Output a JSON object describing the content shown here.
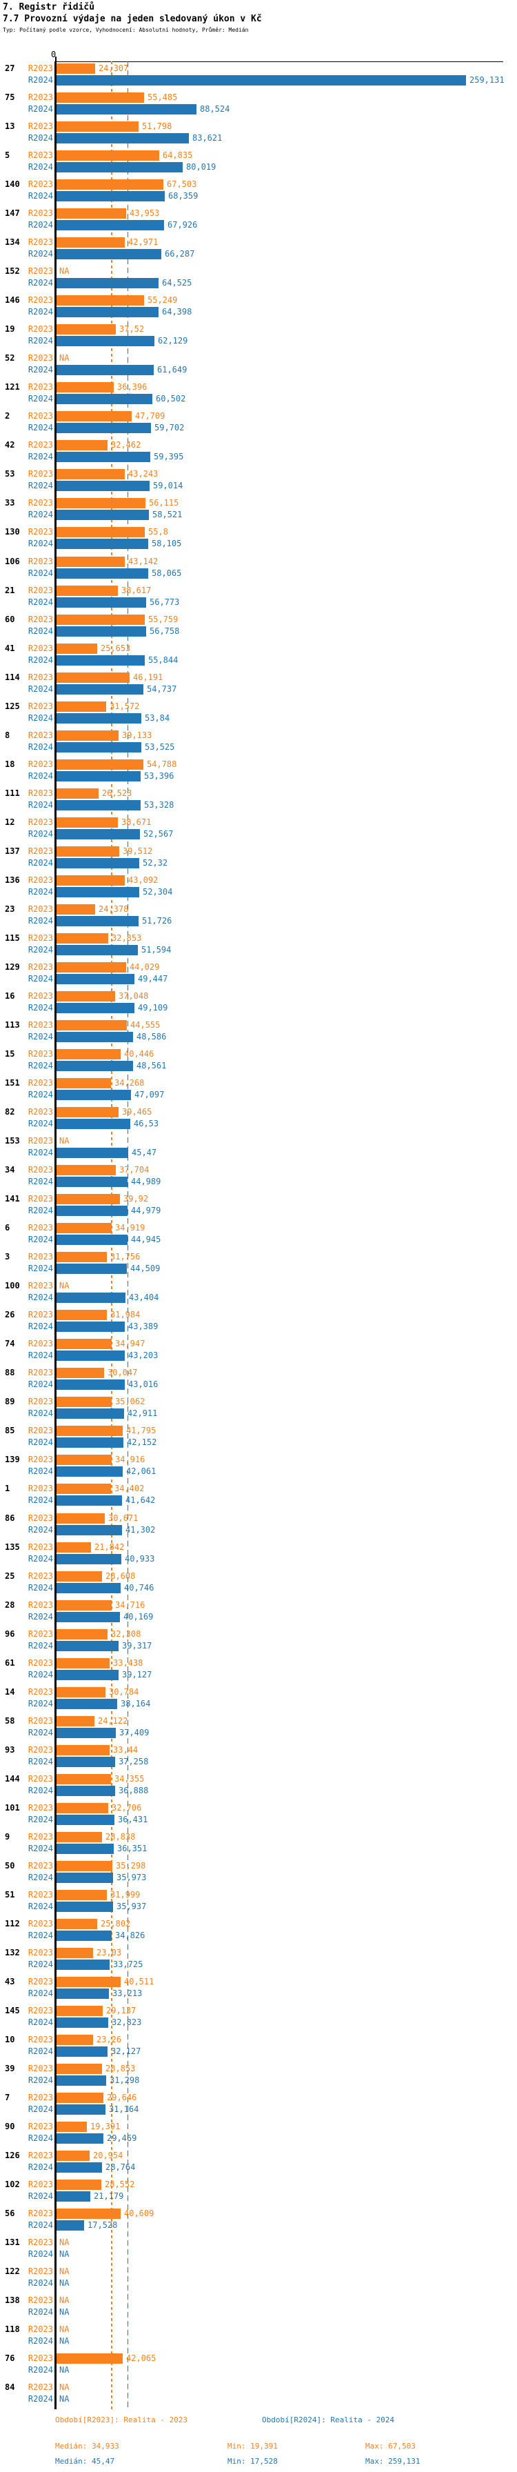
{
  "header": {
    "title": "7. Registr řidičů",
    "subtitle": "7.7 Provozní výdaje na jeden sledovaný úkon v Kč",
    "meta": "Typ: Počítaný podle vzorce, Vyhodnocení: Absolutní hodnoty, Průměr: Medián"
  },
  "chart_data": {
    "type": "bar",
    "orientation": "horizontal",
    "value_format": "czech decimal comma, thousands of Kč",
    "axis": {
      "zero_label": "0"
    },
    "series_names": [
      "R2023",
      "R2024"
    ],
    "colors": {
      "r2023": "#f8821f",
      "r2024": "#2277b4"
    },
    "medians": {
      "r2023": 34.933,
      "r2024": 45.47
    },
    "rows": [
      {
        "id": "27",
        "r2023": "24,307",
        "r2024": "259,131"
      },
      {
        "id": "75",
        "r2023": "55,485",
        "r2024": "88,524"
      },
      {
        "id": "13",
        "r2023": "51,798",
        "r2024": "83,621"
      },
      {
        "id": "5",
        "r2023": "64,835",
        "r2024": "80,019"
      },
      {
        "id": "140",
        "r2023": "67,503",
        "r2024": "68,359"
      },
      {
        "id": "147",
        "r2023": "43,953",
        "r2024": "67,926"
      },
      {
        "id": "134",
        "r2023": "42,971",
        "r2024": "66,287"
      },
      {
        "id": "152",
        "r2023": "NA",
        "r2024": "64,525"
      },
      {
        "id": "146",
        "r2023": "55,249",
        "r2024": "64,398"
      },
      {
        "id": "19",
        "r2023": "37,52",
        "r2024": "62,129"
      },
      {
        "id": "52",
        "r2023": "NA",
        "r2024": "61,649"
      },
      {
        "id": "121",
        "r2023": "36,396",
        "r2024": "60,502"
      },
      {
        "id": "2",
        "r2023": "47,709",
        "r2024": "59,702"
      },
      {
        "id": "42",
        "r2023": "32,462",
        "r2024": "59,395"
      },
      {
        "id": "53",
        "r2023": "43,243",
        "r2024": "59,014"
      },
      {
        "id": "33",
        "r2023": "56,115",
        "r2024": "58,521"
      },
      {
        "id": "130",
        "r2023": "55,8",
        "r2024": "58,105"
      },
      {
        "id": "106",
        "r2023": "43,142",
        "r2024": "58,065"
      },
      {
        "id": "21",
        "r2023": "38,617",
        "r2024": "56,773"
      },
      {
        "id": "60",
        "r2023": "55,759",
        "r2024": "56,758"
      },
      {
        "id": "41",
        "r2023": "25,653",
        "r2024": "55,844"
      },
      {
        "id": "114",
        "r2023": "46,191",
        "r2024": "54,737"
      },
      {
        "id": "125",
        "r2023": "31,572",
        "r2024": "53,84"
      },
      {
        "id": "8",
        "r2023": "39,133",
        "r2024": "53,525"
      },
      {
        "id": "18",
        "r2023": "54,788",
        "r2024": "53,396"
      },
      {
        "id": "111",
        "r2023": "26,523",
        "r2024": "53,328"
      },
      {
        "id": "12",
        "r2023": "38,671",
        "r2024": "52,567"
      },
      {
        "id": "137",
        "r2023": "39,512",
        "r2024": "52,32"
      },
      {
        "id": "136",
        "r2023": "43,092",
        "r2024": "52,304"
      },
      {
        "id": "23",
        "r2023": "24,378",
        "r2024": "51,726"
      },
      {
        "id": "115",
        "r2023": "32,853",
        "r2024": "51,594"
      },
      {
        "id": "129",
        "r2023": "44,029",
        "r2024": "49,447"
      },
      {
        "id": "16",
        "r2023": "37,048",
        "r2024": "49,109"
      },
      {
        "id": "113",
        "r2023": "44,555",
        "r2024": "48,586"
      },
      {
        "id": "15",
        "r2023": "40,446",
        "r2024": "48,561"
      },
      {
        "id": "151",
        "r2023": "34,268",
        "r2024": "47,097"
      },
      {
        "id": "82",
        "r2023": "39,465",
        "r2024": "46,53"
      },
      {
        "id": "153",
        "r2023": "NA",
        "r2024": "45,47"
      },
      {
        "id": "34",
        "r2023": "37,704",
        "r2024": "44,989"
      },
      {
        "id": "141",
        "r2023": "39,92",
        "r2024": "44,979"
      },
      {
        "id": "6",
        "r2023": "34,919",
        "r2024": "44,945"
      },
      {
        "id": "3",
        "r2023": "31,756",
        "r2024": "44,509"
      },
      {
        "id": "100",
        "r2023": "NA",
        "r2024": "43,404"
      },
      {
        "id": "26",
        "r2023": "31,984",
        "r2024": "43,389"
      },
      {
        "id": "74",
        "r2023": "34,947",
        "r2024": "43,203"
      },
      {
        "id": "88",
        "r2023": "30,047",
        "r2024": "43,016"
      },
      {
        "id": "89",
        "r2023": "35,062",
        "r2024": "42,911"
      },
      {
        "id": "85",
        "r2023": "41,795",
        "r2024": "42,152"
      },
      {
        "id": "139",
        "r2023": "34,916",
        "r2024": "42,061"
      },
      {
        "id": "1",
        "r2023": "34,402",
        "r2024": "41,642"
      },
      {
        "id": "86",
        "r2023": "30,671",
        "r2024": "41,302"
      },
      {
        "id": "135",
        "r2023": "21,842",
        "r2024": "40,933"
      },
      {
        "id": "25",
        "r2023": "28,608",
        "r2024": "40,746"
      },
      {
        "id": "28",
        "r2023": "34,716",
        "r2024": "40,169"
      },
      {
        "id": "96",
        "r2023": "32,308",
        "r2024": "39,317"
      },
      {
        "id": "61",
        "r2023": "33,438",
        "r2024": "39,127"
      },
      {
        "id": "14",
        "r2023": "30,784",
        "r2024": "38,164"
      },
      {
        "id": "58",
        "r2023": "24,122",
        "r2024": "37,409"
      },
      {
        "id": "93",
        "r2023": "33,44",
        "r2024": "37,258"
      },
      {
        "id": "144",
        "r2023": "34,355",
        "r2024": "36,888"
      },
      {
        "id": "101",
        "r2023": "32,706",
        "r2024": "36,431"
      },
      {
        "id": "9",
        "r2023": "28,838",
        "r2024": "36,351"
      },
      {
        "id": "50",
        "r2023": "35,298",
        "r2024": "35,973"
      },
      {
        "id": "51",
        "r2023": "31,999",
        "r2024": "35,937"
      },
      {
        "id": "112",
        "r2023": "25,802",
        "r2024": "34,826"
      },
      {
        "id": "132",
        "r2023": "23,03",
        "r2024": "33,725"
      },
      {
        "id": "43",
        "r2023": "40,511",
        "r2024": "33,213"
      },
      {
        "id": "145",
        "r2023": "29,137",
        "r2024": "32,823"
      },
      {
        "id": "10",
        "r2023": "23,26",
        "r2024": "32,127"
      },
      {
        "id": "39",
        "r2023": "28,853",
        "r2024": "31,298"
      },
      {
        "id": "7",
        "r2023": "29,646",
        "r2024": "31,164"
      },
      {
        "id": "90",
        "r2023": "19,391",
        "r2024": "29,469"
      },
      {
        "id": "126",
        "r2023": "20,954",
        "r2024": "28,764"
      },
      {
        "id": "102",
        "r2023": "28,552",
        "r2024": "21,179"
      },
      {
        "id": "56",
        "r2023": "40,609",
        "r2024": "17,528"
      },
      {
        "id": "131",
        "r2023": "NA",
        "r2024": "NA"
      },
      {
        "id": "122",
        "r2023": "NA",
        "r2024": "NA"
      },
      {
        "id": "138",
        "r2023": "NA",
        "r2024": "NA"
      },
      {
        "id": "118",
        "r2023": "NA",
        "r2024": "NA"
      },
      {
        "id": "76",
        "r2023": "42,065",
        "r2024": "NA"
      },
      {
        "id": "84",
        "r2023": "NA",
        "r2024": "NA"
      }
    ]
  },
  "legend": {
    "period_2023": "Období[R2023]: Realita - 2023",
    "period_2024": "Období[R2024]: Realita - 2024",
    "median_2023": "Medián: 34,933",
    "min_2023": "Min: 19,391",
    "max_2023": "Max: 67,503",
    "median_2024": "Medián: 45,47",
    "min_2024": "Min: 17,528",
    "max_2024": "Max: 259,131"
  }
}
